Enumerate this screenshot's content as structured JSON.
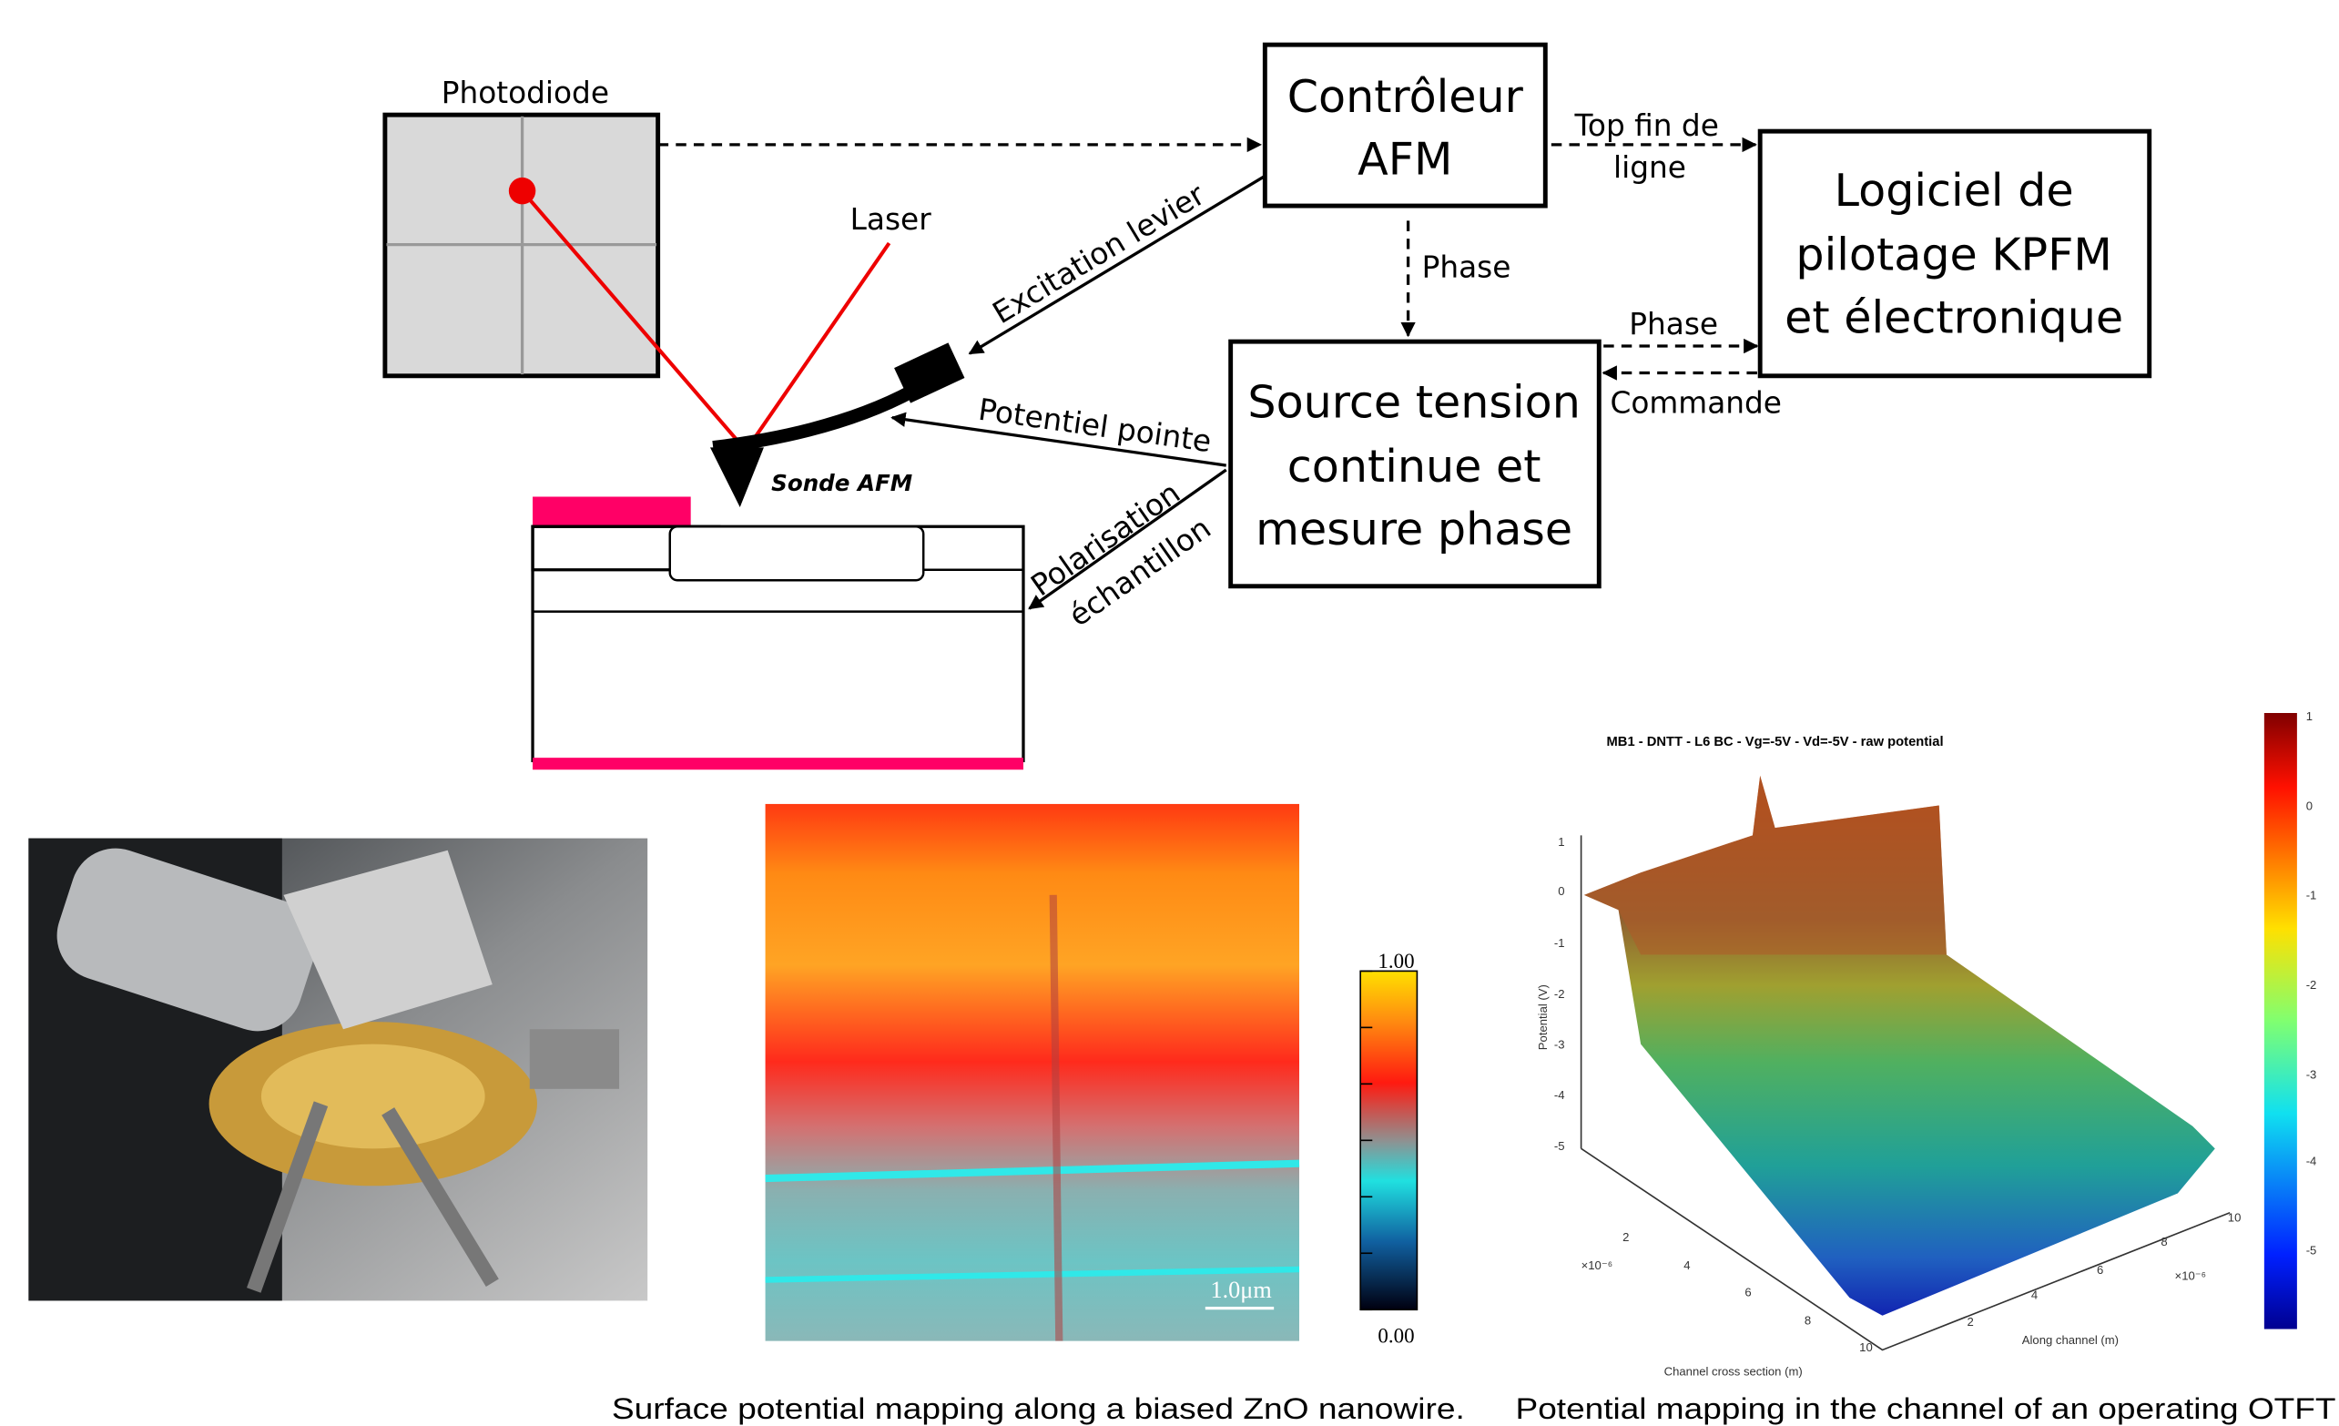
{
  "photodiode_label": "Photodiode",
  "laser_label": "Laser",
  "controller": [
    "Contrôleur",
    "AFM"
  ],
  "software": [
    "Logiciel de",
    "pilotage KPFM",
    "et électronique"
  ],
  "source": [
    "Source tension",
    "continue et",
    "mesure phase"
  ],
  "links": {
    "top_fin_de_ligne": [
      "Top fin de",
      "ligne"
    ],
    "phase_down": "Phase",
    "phase_right": "Phase",
    "commande": "Commande",
    "excitation": "Excitation levier",
    "potentiel": "Potentiel pointe",
    "polarisation": [
      "Polarisation",
      "échantillon"
    ]
  },
  "probe_label": "Sonde AFM",
  "kpfm_map": {
    "scale_bar": "1.0μm",
    "colorbar_labels": [
      "1.00",
      "0.00"
    ],
    "caption": "Surface potential mapping along a biased ZnO nanowire."
  },
  "otft_plot": {
    "title": "MB1 - DNTT -  L6 BC - Vg=-5V - Vd=-5V - raw potential",
    "potential_label": "Potential (V)",
    "cross_label": "Channel cross section (m)",
    "along_label": "Along channel (m)",
    "exponent": "×10⁻⁶",
    "potential_ticks": [
      1,
      0,
      -1,
      -2,
      -3,
      -4,
      -5
    ],
    "cross_ticks": [
      2,
      4,
      6,
      8,
      10
    ],
    "along_ticks": [
      2,
      4,
      6,
      8,
      10
    ],
    "colorbar_ticks": [
      1,
      0,
      -1,
      -2,
      -3,
      -4,
      -5
    ],
    "caption": "Potential mapping in the channel of an operating OTFT"
  }
}
